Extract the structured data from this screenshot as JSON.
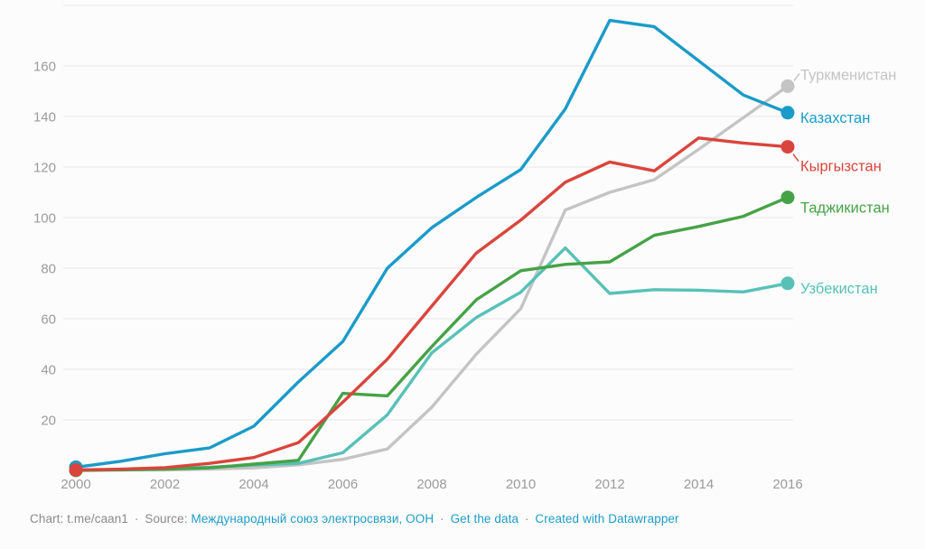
{
  "chart_data": {
    "type": "line",
    "title": "",
    "xlabel": "",
    "ylabel": "",
    "grid": true,
    "legend_position": "right-end-labels",
    "x": [
      2000,
      2001,
      2002,
      2003,
      2004,
      2005,
      2006,
      2007,
      2008,
      2009,
      2010,
      2011,
      2012,
      2013,
      2014,
      2015,
      2016
    ],
    "x_tick_labels": [
      "2000",
      "2002",
      "2004",
      "2006",
      "2008",
      "2010",
      "2012",
      "2014",
      "2016"
    ],
    "y_ticks": [
      20,
      40,
      60,
      80,
      100,
      120,
      140,
      160
    ],
    "ylim": [
      0,
      184
    ],
    "xlim": [
      2000,
      2016
    ],
    "series": [
      {
        "name": "Туркменистан",
        "color": "#c4c4c4",
        "values": [
          0.2,
          0.2,
          0.2,
          0.5,
          1,
          2.2,
          4.4,
          8.5,
          25,
          46,
          64,
          103,
          110,
          115,
          127,
          139.5,
          152
        ]
      },
      {
        "name": "Казахстан",
        "color": "#1a9bc9",
        "values": [
          1.3,
          3.6,
          6.6,
          8.9,
          17.5,
          35,
          51,
          80,
          96,
          108,
          119,
          143,
          178,
          175.5,
          162,
          148.5,
          141.5
        ]
      },
      {
        "name": "Кыргызстан",
        "color": "#d9453c",
        "values": [
          0.2,
          0.5,
          1.1,
          2.8,
          5.1,
          11,
          27,
          44,
          65,
          86,
          99,
          114,
          122,
          118.5,
          131.5,
          129.5,
          128
        ]
      },
      {
        "name": "Таджикистан",
        "color": "#46a246",
        "values": [
          0,
          0.2,
          0.5,
          1,
          2.5,
          4,
          30.5,
          29.5,
          49,
          67.5,
          79,
          81.5,
          82.5,
          93,
          96.5,
          100.5,
          108
        ]
      },
      {
        "name": "Узбекистан",
        "color": "#57c1b7",
        "values": [
          0.2,
          0.3,
          0.7,
          1.3,
          2.1,
          2.8,
          7,
          22,
          46.5,
          60.5,
          70.5,
          88,
          70,
          71.5,
          71.3,
          70.6,
          74
        ]
      }
    ]
  },
  "colors": {
    "background": "#fcfcfc",
    "gridline": "#e9e9e9",
    "axis_text": "#9b9b9b",
    "footer_text": "#8a8a8a",
    "link": "#1d9cc8"
  },
  "footer": {
    "chart_credit": "Chart: t.me/caan1",
    "separator": "·",
    "source_label": "Source:",
    "source_link": "Международный союз электросвязи, ООН",
    "get_data_link": "Get the data",
    "created_with_link": "Created with Datawrapper"
  }
}
